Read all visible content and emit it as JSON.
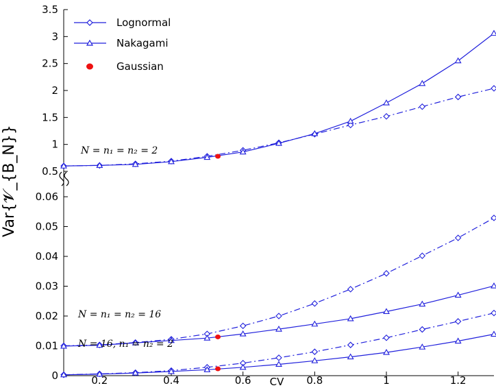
{
  "chart_data": {
    "type": "line",
    "xlabel": "CV",
    "ylabel": "Var{𝓥_{B_N}}",
    "x_ticks": [
      "0.2",
      "0.4",
      "0.6",
      "0.8",
      "1",
      "1.2"
    ],
    "xlim": [
      0.1,
      1.3
    ],
    "panels": [
      {
        "name": "top",
        "ylim": [
          0.5,
          3.5
        ],
        "y_ticks": [
          "0.5",
          "1",
          "1.5",
          "2",
          "2.5",
          "3",
          "3.5"
        ],
        "annotation": "N = n₁ = n₂ = 2",
        "series": [
          {
            "name": "Lognormal",
            "marker": "diamond",
            "dash": "dashdot",
            "x": [
              0.1,
              0.2,
              0.3,
              0.4,
              0.5,
              0.6,
              0.7,
              0.8,
              0.9,
              1.0,
              1.1,
              1.2,
              1.3
            ],
            "y": [
              0.6,
              0.61,
              0.64,
              0.69,
              0.78,
              0.89,
              1.03,
              1.19,
              1.36,
              1.52,
              1.7,
              1.88,
              2.04
            ]
          },
          {
            "name": "Nakagami",
            "marker": "triangle",
            "dash": "solid",
            "x": [
              0.1,
              0.2,
              0.3,
              0.4,
              0.5,
              0.6,
              0.7,
              0.8,
              0.9,
              1.0,
              1.1,
              1.2,
              1.3
            ],
            "y": [
              0.6,
              0.61,
              0.63,
              0.68,
              0.76,
              0.86,
              1.02,
              1.2,
              1.43,
              1.77,
              2.13,
              2.55,
              3.06
            ]
          }
        ],
        "gaussian": {
          "x": 0.53,
          "y": 0.78
        }
      },
      {
        "name": "bottom",
        "ylim": [
          0,
          0.06
        ],
        "y_ticks": [
          "0",
          "0.01",
          "0.02",
          "0.03",
          "0.04",
          "0.05",
          "0.06"
        ],
        "annotations": [
          "N = n₁ = n₂ = 16",
          "N = 16,  n₁ = n₂ = 2"
        ],
        "series": [
          {
            "name": "Lognormal (N = n₁ = n₂ = 16)",
            "marker": "diamond",
            "dash": "dashdot",
            "x": [
              0.1,
              0.2,
              0.3,
              0.4,
              0.5,
              0.6,
              0.7,
              0.8,
              0.9,
              1.0,
              1.1,
              1.2,
              1.3
            ],
            "y": [
              0.01,
              0.0103,
              0.0111,
              0.0122,
              0.014,
              0.0167,
              0.02,
              0.0242,
              0.029,
              0.0343,
              0.0402,
              0.0462,
              0.0529
            ]
          },
          {
            "name": "Nakagami (N = n₁ = n₂ = 16)",
            "marker": "triangle",
            "dash": "solid",
            "x": [
              0.1,
              0.2,
              0.3,
              0.4,
              0.5,
              0.6,
              0.7,
              0.8,
              0.9,
              1.0,
              1.1,
              1.2,
              1.3
            ],
            "y": [
              0.0099,
              0.0102,
              0.011,
              0.0118,
              0.0126,
              0.014,
              0.0156,
              0.0173,
              0.0191,
              0.0215,
              0.024,
              0.027,
              0.0301
            ]
          },
          {
            "name": "Lognormal (N = 16, n₁ = n₂ = 2)",
            "marker": "diamond",
            "dash": "dashdot",
            "x": [
              0.1,
              0.2,
              0.3,
              0.4,
              0.5,
              0.6,
              0.7,
              0.8,
              0.9,
              1.0,
              1.1,
              1.2,
              1.3
            ],
            "y": [
              0.0003,
              0.0006,
              0.001,
              0.0017,
              0.0028,
              0.0042,
              0.006,
              0.008,
              0.0103,
              0.0127,
              0.0155,
              0.0182,
              0.021
            ]
          },
          {
            "name": "Nakagami (N = 16, n₁ = n₂ = 2)",
            "marker": "triangle",
            "dash": "solid",
            "x": [
              0.1,
              0.2,
              0.3,
              0.4,
              0.5,
              0.6,
              0.7,
              0.8,
              0.9,
              1.0,
              1.1,
              1.2,
              1.3
            ],
            "y": [
              0.0003,
              0.0005,
              0.0009,
              0.0014,
              0.002,
              0.0028,
              0.0038,
              0.005,
              0.0063,
              0.0078,
              0.0096,
              0.0116,
              0.0139
            ]
          }
        ],
        "gaussian": [
          {
            "x": 0.53,
            "y": 0.013
          },
          {
            "x": 0.53,
            "y": 0.0023
          }
        ]
      }
    ],
    "legend": [
      {
        "label": "Lognormal",
        "marker": "diamond"
      },
      {
        "label": "Nakagami",
        "marker": "triangle"
      },
      {
        "label": "Gaussian",
        "marker": "filled-circle"
      }
    ],
    "legend_position": "top-left",
    "colors": {
      "line": "#1f1fdc",
      "gaussian": "#ee1111",
      "axis": "#000000"
    }
  }
}
